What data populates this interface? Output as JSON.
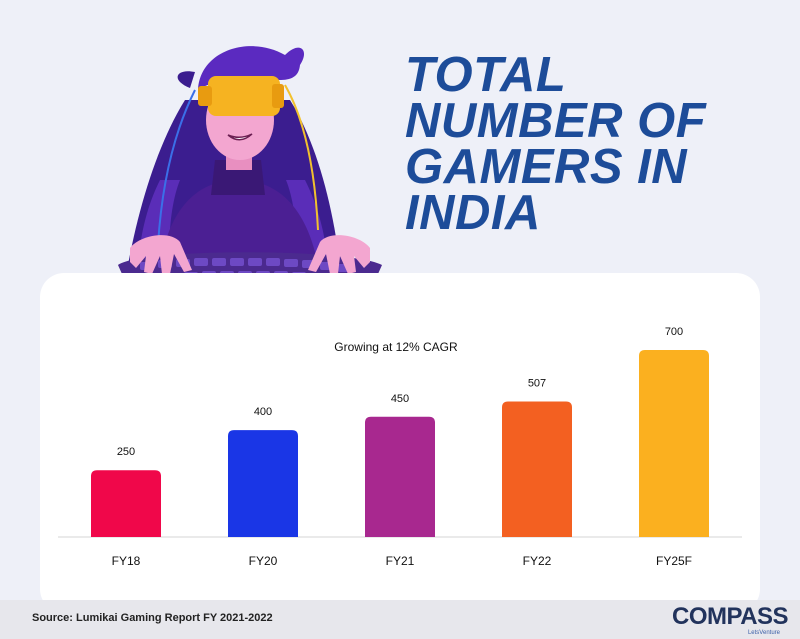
{
  "header": {
    "title_lines": [
      "TOTAL",
      "NUMBER OF",
      "GAMERS IN",
      "INDIA"
    ]
  },
  "chart_data": {
    "type": "bar",
    "subtitle": "Growing at 12% CAGR",
    "categories": [
      "FY18",
      "FY20",
      "FY21",
      "FY22",
      "FY25F"
    ],
    "values": [
      250,
      400,
      450,
      507,
      700
    ],
    "colors": [
      "#f0074a",
      "#1a36e6",
      "#a8288f",
      "#f36021",
      "#fbb01f"
    ],
    "ylim": [
      0,
      700
    ],
    "grid": false,
    "legend": "none"
  },
  "footer": {
    "source": "Source: Lumikai Gaming Report FY 2021-2022",
    "logo_text": "COMPASS",
    "logo_sub": "LetsVenture"
  },
  "illustration": {
    "icon": "gamer-with-vr-headset-icon"
  }
}
